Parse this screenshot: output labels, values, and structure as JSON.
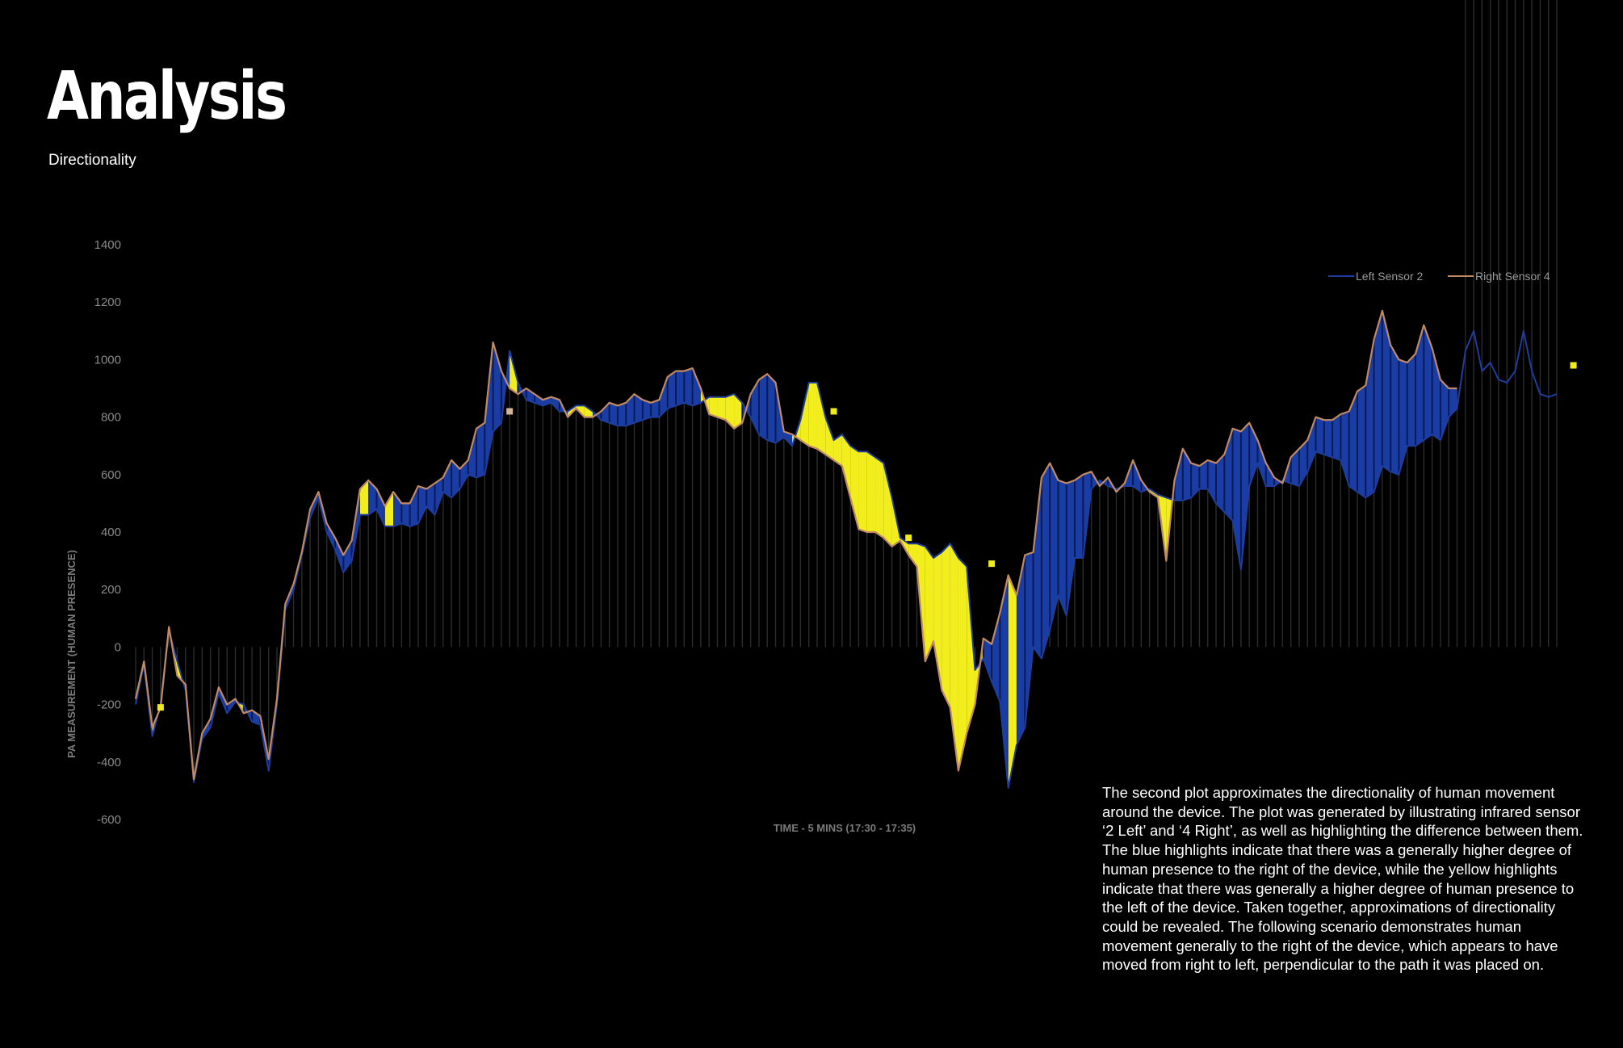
{
  "page": {
    "title": "Analysis",
    "subtitle": "Directionality",
    "description": "The second plot approximates the directionality of human movement around the device. The plot was generated by illustrating infrared sensor ‘2 Left’ and ‘4 Right’, as well as highlighting the difference between them. The blue highlights indicate that there was a generally higher degree of human presence to the right of the device, while the yellow highlights indicate that there was generally a higher degree of human presence to the left of the device. Taken together, approximations of directionality could be revealed. The following scenario demonstrates human movement generally to the right of the device, which appears to have moved from right to left, perpendicular to the path it was placed on."
  },
  "chart_data": {
    "type": "line",
    "xlabel": "TIME - 5 MINS (17:30 - 17:35)",
    "ylabel": "PA MEASUREMENT (HUMAN PRESENCE)",
    "ylim": [
      -600,
      1400
    ],
    "yticks": [
      1400,
      1200,
      1000,
      800,
      600,
      400,
      200,
      0,
      -200,
      -400,
      -600
    ],
    "grid": false,
    "legend_position": "top-right",
    "highlight_colors": {
      "right_higher": "#1a3fae",
      "left_higher": "#f2ee1e"
    },
    "series": [
      {
        "name": "Left Sensor 2",
        "color": "#1e3d9c",
        "values": [
          -200,
          -60,
          -310,
          -200,
          60,
          -50,
          -150,
          -470,
          -320,
          -280,
          -160,
          -230,
          -190,
          -200,
          -260,
          -270,
          -430,
          -200,
          130,
          200,
          320,
          450,
          520,
          400,
          340,
          260,
          300,
          460,
          460,
          480,
          420,
          420,
          430,
          420,
          430,
          490,
          460,
          540,
          520,
          550,
          600,
          590,
          600,
          750,
          780,
          1030,
          920,
          860,
          850,
          840,
          850,
          820,
          820,
          840,
          840,
          820,
          790,
          780,
          770,
          770,
          780,
          790,
          800,
          800,
          830,
          840,
          850,
          840,
          850,
          870,
          870,
          870,
          880,
          850,
          800,
          740,
          720,
          710,
          730,
          700,
          790,
          920,
          920,
          800,
          720,
          740,
          700,
          680,
          680,
          660,
          640,
          520,
          380,
          360,
          360,
          350,
          310,
          330,
          360,
          310,
          280,
          -80,
          -40,
          -120,
          -190,
          -490,
          -340,
          -280,
          0,
          -40,
          60,
          180,
          110,
          310,
          310,
          550,
          580,
          560,
          550,
          560,
          560,
          540,
          550,
          530,
          520,
          510,
          510,
          520,
          550,
          550,
          500,
          470,
          440,
          270,
          560,
          640,
          560,
          560,
          580,
          570,
          560,
          610,
          680,
          670,
          660,
          650,
          560,
          540,
          520,
          540,
          630,
          610,
          600,
          700,
          700,
          720,
          740,
          720,
          800,
          830,
          1030,
          1100,
          960,
          990,
          930,
          920,
          960,
          1100,
          960,
          880,
          870,
          880
        ],
        "marker_points": [
          {
            "index": 3,
            "value": -210,
            "color": "#f0ec1a"
          },
          {
            "index": 45,
            "value": 820,
            "color": "#d2b49a"
          },
          {
            "index": 84,
            "value": 820,
            "color": "#f0ec1a"
          },
          {
            "index": 93,
            "value": 380,
            "color": "#f0ec1a"
          },
          {
            "index": 103,
            "value": 290,
            "color": "#f0ec1a"
          },
          {
            "index": 173,
            "value": 980,
            "color": "#f0ec1a"
          }
        ]
      },
      {
        "name": "Right Sensor 4",
        "color": "#c08a64",
        "values": [
          -180,
          -50,
          -280,
          -210,
          70,
          -100,
          -130,
          -460,
          -300,
          -250,
          -140,
          -200,
          -180,
          -230,
          -220,
          -240,
          -390,
          -180,
          150,
          220,
          330,
          480,
          540,
          430,
          380,
          320,
          370,
          550,
          580,
          550,
          490,
          540,
          500,
          500,
          560,
          550,
          570,
          590,
          650,
          620,
          650,
          760,
          780,
          1060,
          960,
          900,
          880,
          900,
          880,
          860,
          870,
          860,
          800,
          830,
          800,
          800,
          820,
          850,
          840,
          850,
          880,
          860,
          850,
          860,
          940,
          960,
          960,
          970,
          900,
          810,
          800,
          790,
          760,
          780,
          880,
          930,
          950,
          920,
          750,
          740,
          720,
          700,
          690,
          670,
          650,
          630,
          520,
          410,
          400,
          400,
          380,
          350,
          370,
          320,
          280,
          -50,
          20,
          -150,
          -210,
          -430,
          -300,
          -200,
          30,
          10,
          120,
          250,
          180,
          320,
          330,
          590,
          640,
          580,
          570,
          580,
          600,
          610,
          560,
          590,
          540,
          570,
          650,
          580,
          540,
          520,
          300,
          580,
          690,
          640,
          630,
          650,
          640,
          670,
          760,
          750,
          780,
          720,
          640,
          590,
          570,
          660,
          690,
          720,
          800,
          790,
          790,
          810,
          820,
          890,
          910,
          1070,
          1170,
          1050,
          1000,
          990,
          1020,
          1120,
          1040,
          930,
          900,
          900
        ]
      }
    ],
    "highlights": [
      {
        "from": 2,
        "to": 3,
        "side": "left"
      },
      {
        "from": 27,
        "to": 28,
        "side": "left"
      },
      {
        "from": 30,
        "to": 31,
        "side": "left"
      },
      {
        "from": 105,
        "to": 106,
        "side": "left"
      },
      {
        "from": 170,
        "to": 171,
        "side": "left"
      }
    ]
  }
}
